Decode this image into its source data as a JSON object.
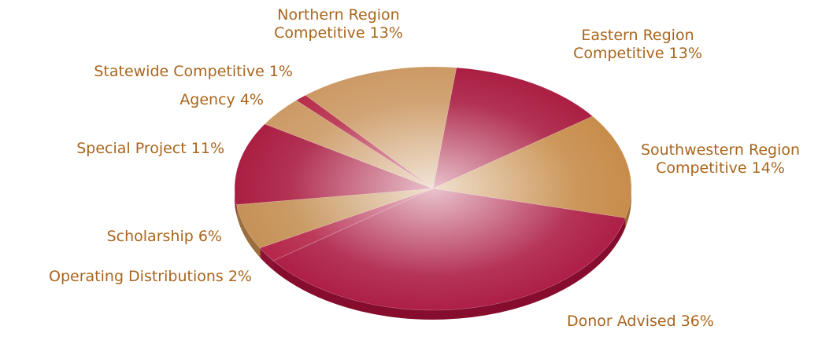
{
  "chart_data": {
    "type": "pie",
    "categories": [
      "Northern Region Competitive",
      "Eastern Region Competitive",
      "Southwestern Region Competitive",
      "Donor Advised",
      "Operating Distributions",
      "Scholarship",
      "Special Project",
      "Agency",
      "Statewide Competitive"
    ],
    "values": [
      13,
      13,
      14,
      36,
      2,
      6,
      11,
      4,
      1
    ],
    "value_labels": [
      "13%",
      "13%",
      "14%",
      "36%",
      "2%",
      "6%",
      "11%",
      "4%",
      "1%"
    ],
    "colors": [
      "#c9935b",
      "#a50f36",
      "#c4853f",
      "#a8103a",
      "#b0183e",
      "#c28a4c",
      "#a50f36",
      "#c9935b",
      "#b2203f"
    ]
  }
}
